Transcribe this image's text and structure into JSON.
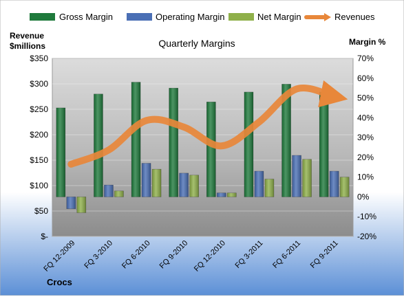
{
  "chart_data": {
    "type": "bar",
    "title": "Quarterly Margins",
    "company": "Crocs",
    "left_axis_label_line1": "Revenue",
    "left_axis_label_line2": "$millions",
    "right_axis_label": "Margin %",
    "categories": [
      "FQ 12-2009",
      "FQ 3-2010",
      "FQ 6-2010",
      "FQ 9-2010",
      "FQ 12-2010",
      "FQ 3-2011",
      "FQ 6-2011",
      "FQ 9-2011"
    ],
    "left_ticks": [
      "$-",
      "$50",
      "$100",
      "$150",
      "$200",
      "$250",
      "$300",
      "$350"
    ],
    "right_ticks": [
      "-20%",
      "-10%",
      "0%",
      "10%",
      "20%",
      "30%",
      "40%",
      "50%",
      "60%",
      "70%"
    ],
    "ylim_left": [
      0,
      350
    ],
    "ylim_right": [
      -20,
      70
    ],
    "legend_position": "top",
    "series": [
      {
        "name": "Gross Margin",
        "axis": "right",
        "kind": "bar",
        "color": "#1f7a3c",
        "values": [
          45,
          52,
          58,
          55,
          48,
          53,
          57,
          53
        ]
      },
      {
        "name": "Operating Margin",
        "axis": "right",
        "kind": "bar",
        "color": "#4a6fb5",
        "values": [
          -6,
          6,
          17,
          12,
          2,
          13,
          21,
          13
        ]
      },
      {
        "name": "Net Margin",
        "axis": "right",
        "kind": "bar",
        "color": "#8fb04a",
        "values": [
          -8,
          3,
          14,
          11,
          2,
          9,
          19,
          10
        ]
      },
      {
        "name": "Revenues",
        "axis": "left",
        "kind": "line",
        "color": "#e8873a",
        "values": [
          142,
          170,
          228,
          215,
          178,
          225,
          290,
          275
        ]
      }
    ]
  }
}
